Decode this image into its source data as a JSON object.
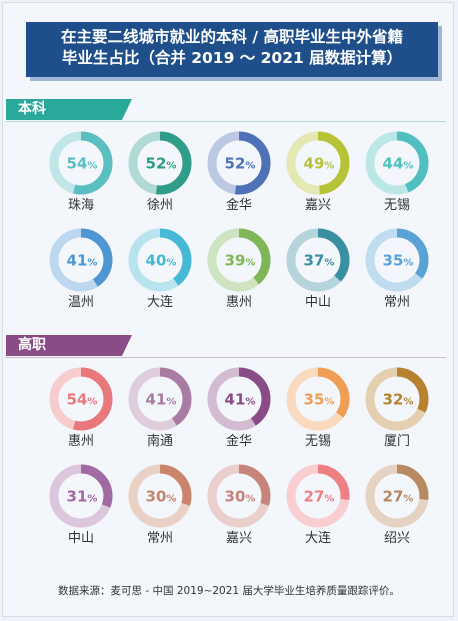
{
  "title": {
    "line1": "在主要二线城市就业的本科 / 高职毕业生中外省籍",
    "line2": "毕业生占比（合并 2019 ～ 2021 届数据计算）"
  },
  "chart_data": [
    {
      "type": "pie",
      "title": "本科",
      "categories": [
        "珠海",
        "徐州",
        "金华",
        "嘉兴",
        "无锡",
        "温州",
        "大连",
        "惠州",
        "中山",
        "常州"
      ],
      "values": [
        54,
        52,
        52,
        49,
        44,
        41,
        40,
        39,
        37,
        35
      ],
      "unit": "%",
      "colors": [
        "#5bbec1",
        "#2f9d8a",
        "#4f71b8",
        "#b7c337",
        "#4fbfbf",
        "#4f97d2",
        "#45b9d6",
        "#7fb657",
        "#3b8fa3",
        "#5aa2d6"
      ]
    },
    {
      "type": "pie",
      "title": "高职",
      "categories": [
        "惠州",
        "南通",
        "金华",
        "无锡",
        "厦门",
        "中山",
        "常州",
        "嘉兴",
        "大连",
        "绍兴"
      ],
      "values": [
        54,
        41,
        41,
        35,
        32,
        31,
        30,
        30,
        27,
        27
      ],
      "unit": "%",
      "colors": [
        "#e9787c",
        "#a87ca3",
        "#8a4c86",
        "#ef9e53",
        "#b8812f",
        "#a26aa2",
        "#c9856a",
        "#c7847a",
        "#ee7f83",
        "#b88a62"
      ]
    }
  ],
  "source": "数据来源：麦可思 - 中国 2019~2021 届大学毕业生培养质量跟踪评价。"
}
